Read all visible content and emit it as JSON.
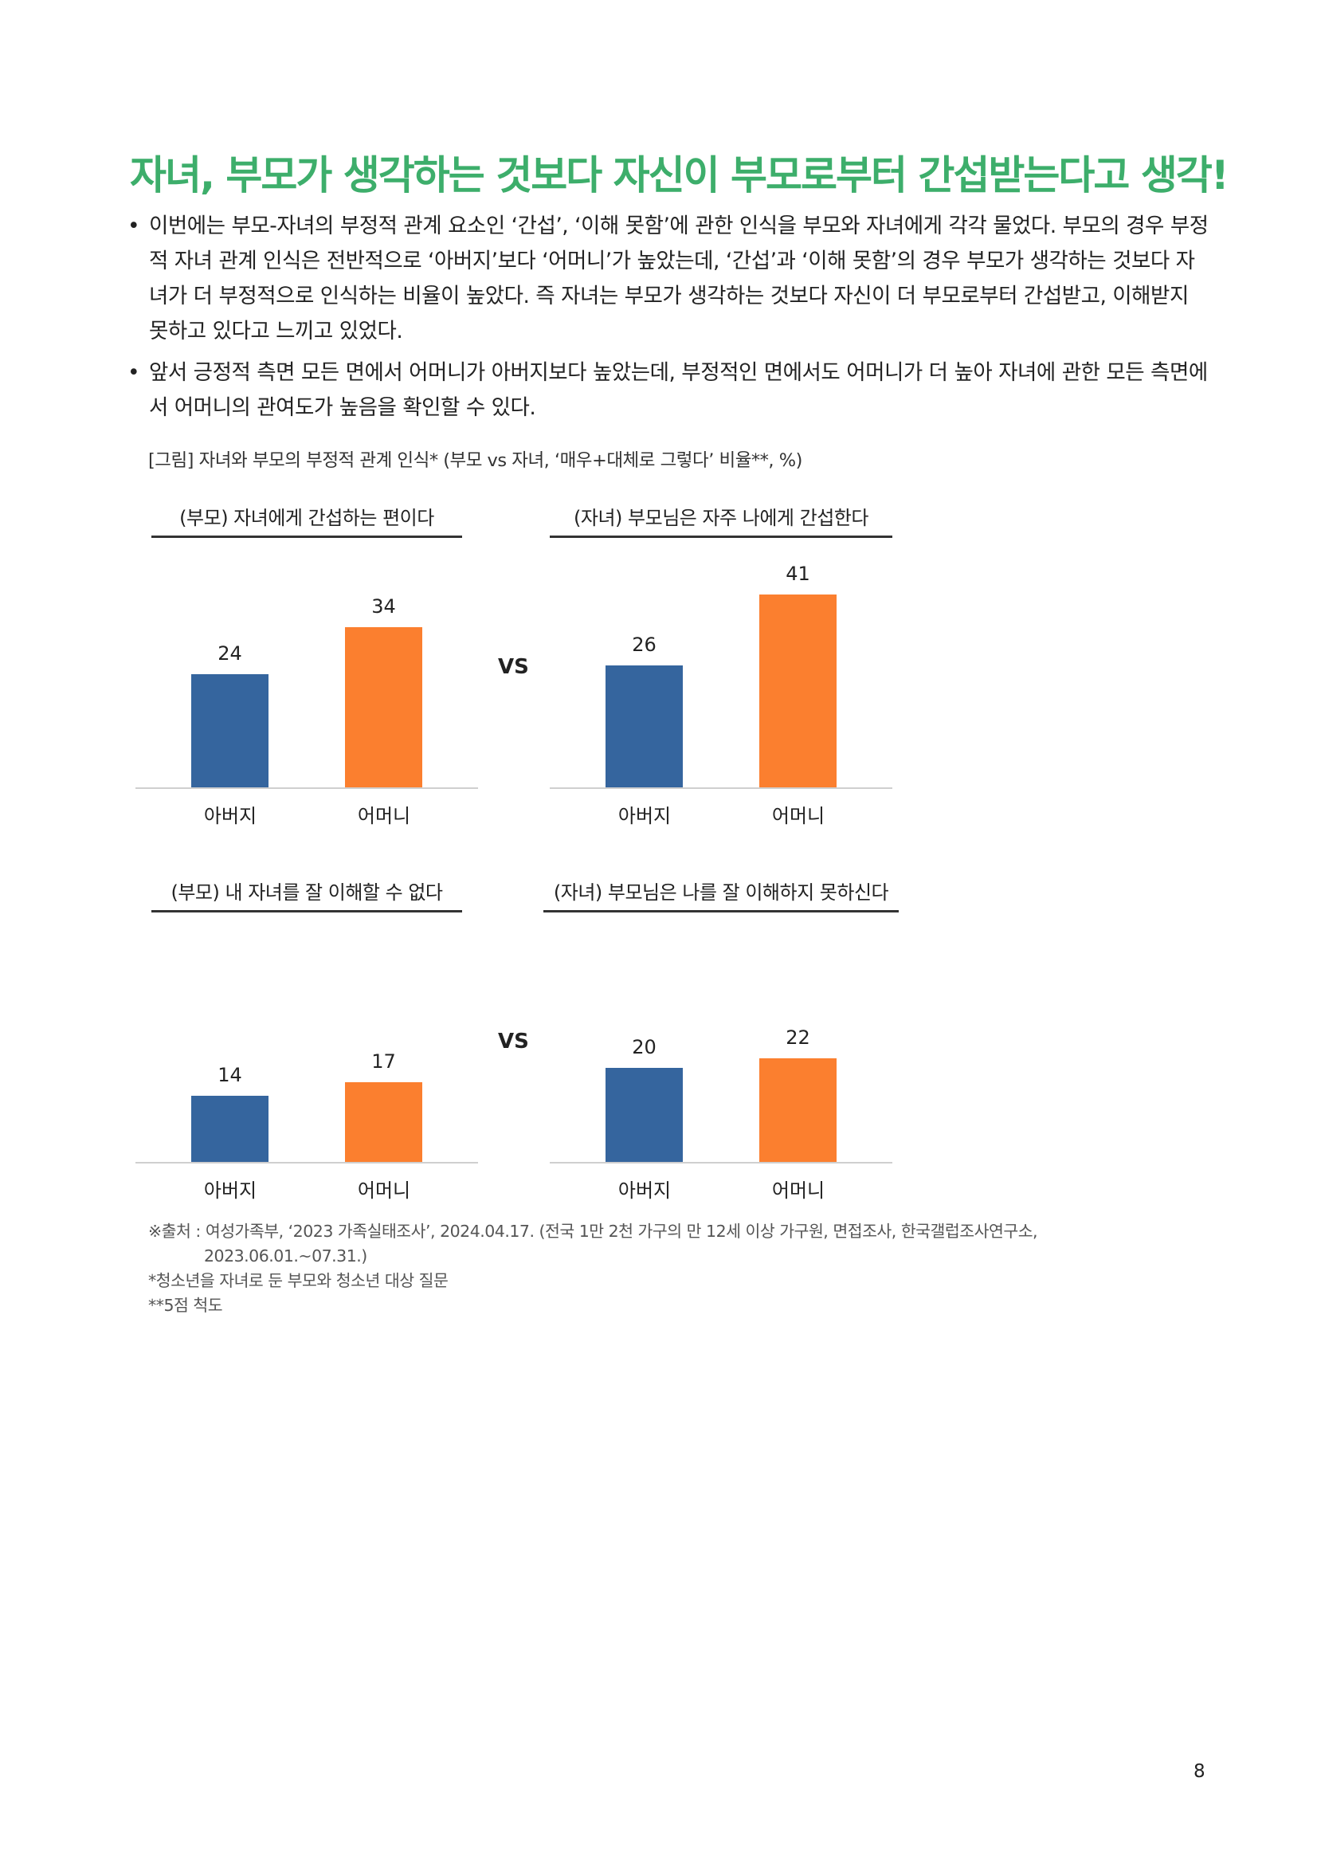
{
  "page": {
    "title": "자녀, 부모가 생각하는 것보다 자신이 부모로부터 간섭받는다고 생각!",
    "bullets": [
      "이번에는 부모-자녀의 부정적 관계 요소인 ‘간섭’, ‘이해 못함’에 관한 인식을 부모와 자녀에게 각각 물었다. 부모의 경우 부정적 자녀 관계 인식은 전반적으로 ‘아버지’보다 ‘어머니’가 높았는데, ‘간섭’과 ‘이해 못함’의 경우 부모가 생각하는 것보다 자녀가 더 부정적으로 인식하는 비율이 높았다. 즉 자녀는 부모가 생각하는 것보다 자신이 더 부모로부터 간섭받고, 이해받지 못하고 있다고 느끼고 있었다.",
      "앞서 긍정적 측면 모든 면에서 어머니가 아버지보다 높았는데, 부정적인 면에서도 어머니가 더 높아 자녀에 관한 모든 측면에서 어머니의 관여도가 높음을 확인할 수 있다."
    ],
    "bullet_symbol": "•",
    "figure_caption": "[그림] 자녀와 부모의 부정적 관계 인식* (부모 vs 자녀, ‘매우+대체로 그렇다’ 비율**, %)",
    "vs_label": "VS",
    "notes": [
      "※출처 : 여성가족부, ‘2023 가족실태조사’, 2024.04.17. (전국 1만 2천 가구의 만 12세 이상 가구원, 면접조사, 한국갤럽조사연구소,",
      "2023.06.01.~07.31.)",
      "*청소년을 자녀로 둔 부모와 청소년 대상 질문",
      "**5점 척도"
    ],
    "page_number": "8"
  },
  "chart_data": [
    {
      "type": "bar",
      "title": "(부모) 자녀에게 간섭하는 편이다",
      "categories": [
        "아버지",
        "어머니"
      ],
      "values": [
        24,
        34
      ],
      "colors": [
        "#35659e",
        "#fb7f2f"
      ],
      "ylim": [
        0,
        45
      ]
    },
    {
      "type": "bar",
      "title": "(자녀) 부모님은 자주 나에게 간섭한다",
      "categories": [
        "아버지",
        "어머니"
      ],
      "values": [
        26,
        41
      ],
      "colors": [
        "#35659e",
        "#fb7f2f"
      ],
      "ylim": [
        0,
        45
      ]
    },
    {
      "type": "bar",
      "title": "(부모) 내 자녀를 잘 이해할 수 없다",
      "categories": [
        "아버지",
        "어머니"
      ],
      "values": [
        14,
        17
      ],
      "colors": [
        "#35659e",
        "#fb7f2f"
      ],
      "ylim": [
        0,
        45
      ]
    },
    {
      "type": "bar",
      "title": "(자녀) 부모님은 나를 잘 이해하지 못하신다",
      "categories": [
        "아버지",
        "어머니"
      ],
      "values": [
        20,
        22
      ],
      "colors": [
        "#35659e",
        "#fb7f2f"
      ],
      "ylim": [
        0,
        45
      ]
    }
  ]
}
